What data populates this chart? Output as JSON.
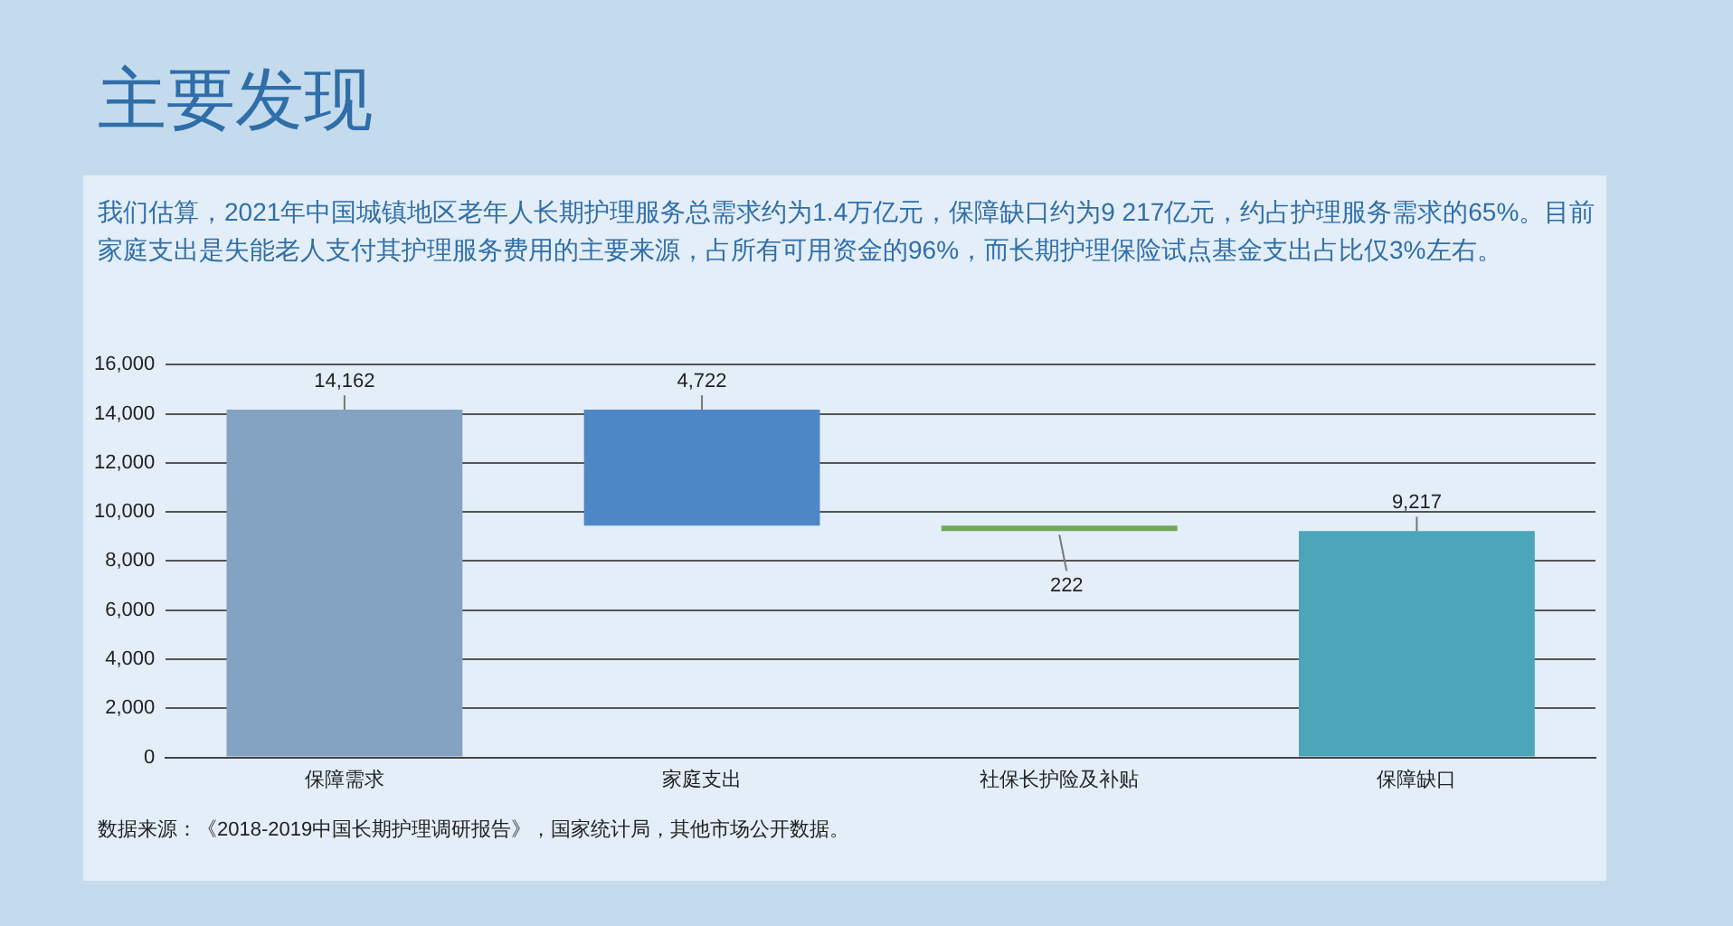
{
  "chart_data": {
    "type": "bar",
    "title": "主要发现",
    "subtitle": "我们估算，2021年中国城镇地区老年人长期护理服务总需求约为1.4万亿元，保障缺口约为9 217亿元，约占护理服务需求的65%。目前家庭支出是失能老人支付其护理服务费用的主要来源，占所有可用资金的96%，而长期护理保险试点基金支出占比仅3%左右。",
    "categories": [
      "保障需求",
      "家庭支出",
      "社保长护险及补贴",
      "保障缺口"
    ],
    "values": [
      14162,
      4722,
      222,
      9217
    ],
    "base": [
      0,
      9440,
      9217,
      0
    ],
    "colors": [
      "#84a3c2",
      "#4e87c6",
      "#72a75a",
      "#4ca5b9"
    ],
    "ylim": [
      0,
      16000
    ],
    "yticks": [
      {
        "value": 0,
        "label": "0"
      },
      {
        "value": 2000,
        "label": "2,000"
      },
      {
        "value": 4000,
        "label": "4,000"
      },
      {
        "value": 6000,
        "label": "6,000"
      },
      {
        "value": 8000,
        "label": "8,000"
      },
      {
        "value": 10000,
        "label": "10,000"
      },
      {
        "value": 12000,
        "label": "12,000"
      },
      {
        "value": 14000,
        "label": "14,000"
      },
      {
        "value": 16000,
        "label": "16,000"
      }
    ],
    "value_labels": [
      "14,162",
      "4,722",
      "222",
      "9,217"
    ],
    "grid": "y",
    "legend": false,
    "annotations": [
      "数据来源：《2018-2019中国长期护理调研报告》，国家统计局，其他市场公开数据。"
    ]
  }
}
